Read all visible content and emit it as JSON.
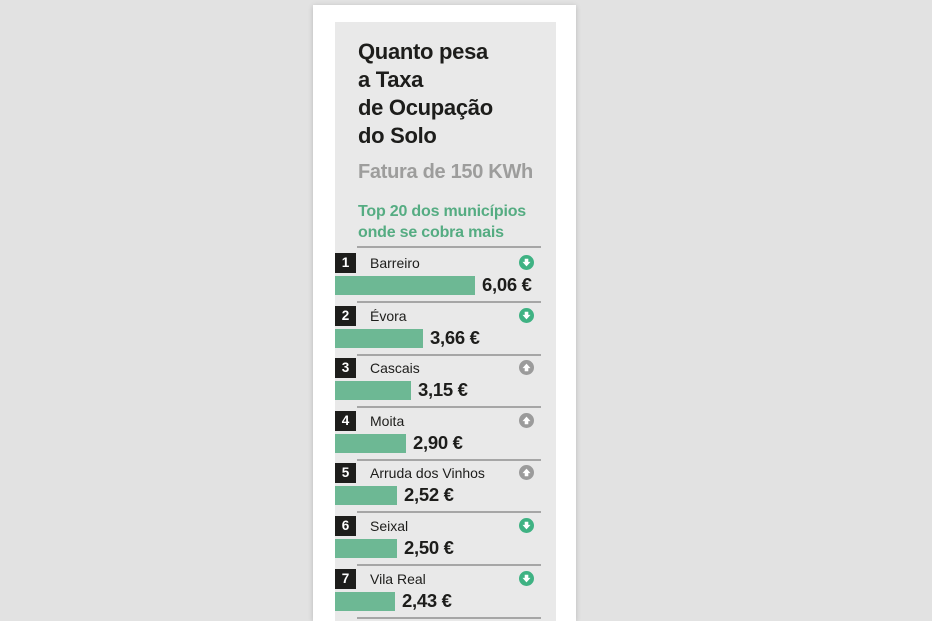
{
  "page": {
    "background_color": "#e2e2e2",
    "card_color": "#ffffff",
    "panel_color": "#e9e9e9"
  },
  "header": {
    "title_lines": [
      "Quanto pesa",
      "a Taxa",
      "de Ocupação",
      "do Solo"
    ],
    "subtitle": "Fatura de 150 KWh",
    "note_lines": [
      "Top 20 dos municípios",
      "onde se cobra mais"
    ]
  },
  "chart_data": {
    "type": "bar",
    "orientation": "horizontal",
    "title": "Quanto pesa a Taxa de Ocupação do Solo",
    "subtitle": "Fatura de 150 KWh",
    "note": "Top 20 dos municípios onde se cobra mais",
    "unit": "EUR",
    "visible_rows": 7,
    "categories": [
      "Barreiro",
      "Évora",
      "Cascais",
      "Moita",
      "Arruda dos Vinhos",
      "Seixal",
      "Vila Real"
    ],
    "ranks": [
      1,
      2,
      3,
      4,
      5,
      6,
      7
    ],
    "values": [
      6.06,
      3.66,
      3.15,
      2.9,
      2.52,
      2.5,
      2.43
    ],
    "value_labels": [
      "6,06 €",
      "3,66 €",
      "3,15 €",
      "2,90 €",
      "2,52 €",
      "2,50 €",
      "2,43 €"
    ],
    "trends": [
      "down",
      "down",
      "up",
      "up",
      "up",
      "down",
      "down"
    ],
    "xlim": [
      0,
      6.5
    ],
    "grid": false,
    "legend": false,
    "colors": {
      "bar": "#6db894",
      "trend_down_icon": "#3fb283",
      "trend_up_icon": "#9b9b9b",
      "note_text": "#55ac82",
      "subtitle_text": "#9d9d9c",
      "title_text": "#1d1d1b",
      "rank_badge_bg": "#1d1d1b",
      "rank_badge_text": "#ffffff",
      "divider": "#a6a6a6"
    }
  }
}
